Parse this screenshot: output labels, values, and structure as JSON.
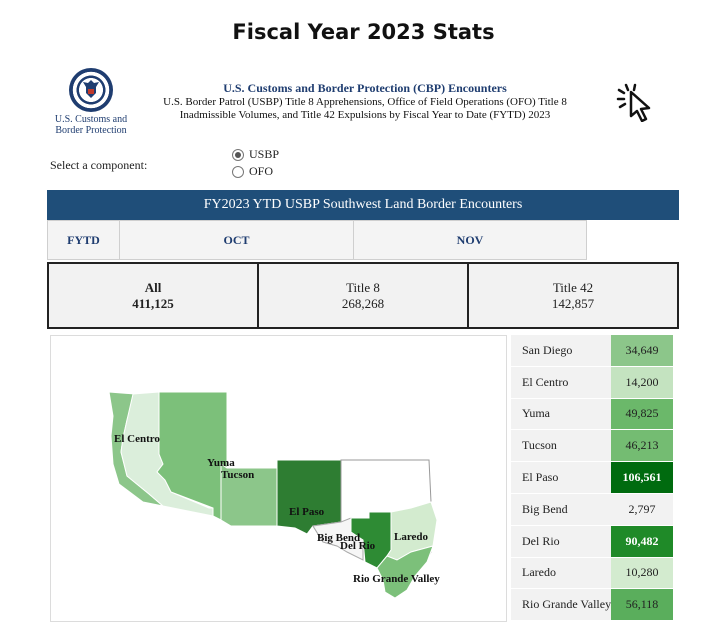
{
  "page_title": "Fiscal Year 2023 Stats",
  "logo": {
    "line1": "U.S. Customs and",
    "line2": "Border Protection"
  },
  "header": {
    "title": "U.S. Customs and Border Protection (CBP) Encounters",
    "line1": "U.S. Border Patrol (USBP) Title 8 Apprehensions, Office of Field Operations (OFO) Title 8",
    "line2": "Inadmissible Volumes, and Title 42 Expulsions by Fiscal Year to Date (FYTD) 2023"
  },
  "component_selector": {
    "label": "Select a component:",
    "options": [
      {
        "label": "USBP",
        "selected": true
      },
      {
        "label": "OFO",
        "selected": false
      }
    ]
  },
  "banner": "FY2023 YTD USBP Southwest Land Border Encounters",
  "tabs": [
    "FYTD",
    "OCT",
    "NOV"
  ],
  "totals": [
    {
      "label": "All",
      "value": "411,125",
      "active": true
    },
    {
      "label": "Title 8",
      "value": "268,268",
      "active": false
    },
    {
      "label": "Title 42",
      "value": "142,857",
      "active": false
    }
  ],
  "map_labels": [
    "El Centro",
    "Yuma",
    "Tucson",
    "El Paso",
    "Big Bend",
    "Del Rio",
    "Laredo",
    "Rio Grande Valley"
  ],
  "sectors": [
    {
      "name": "San Diego",
      "value": "34,649",
      "color": "#8cc68a"
    },
    {
      "name": "El Centro",
      "value": "14,200",
      "color": "#c4e3c0"
    },
    {
      "name": "Yuma",
      "value": "49,825",
      "color": "#6bb86a"
    },
    {
      "name": "Tucson",
      "value": "46,213",
      "color": "#74bc72"
    },
    {
      "name": "El Paso",
      "value": "106,561",
      "color": "#006b0f",
      "light_text": true
    },
    {
      "name": "Big Bend",
      "value": "2,797",
      "color": "#f2f2f2"
    },
    {
      "name": "Del Rio",
      "value": "90,482",
      "color": "#1f8a28",
      "light_text": true
    },
    {
      "name": "Laredo",
      "value": "10,280",
      "color": "#d3ebcf"
    },
    {
      "name": "Rio Grande Valley",
      "value": "56,118",
      "color": "#5aae5c"
    }
  ],
  "colors": {
    "banner": "#1f4e79",
    "accent_text": "#1f3d70"
  }
}
